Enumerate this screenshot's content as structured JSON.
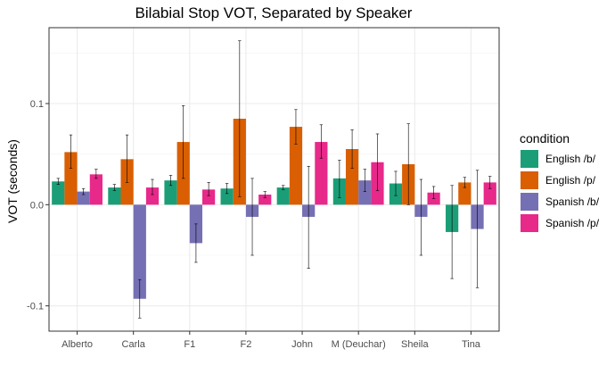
{
  "chart_data": {
    "type": "bar",
    "title": "Bilabial Stop VOT, Separated by Speaker",
    "xlabel": "",
    "ylabel": "VOT (seconds)",
    "ylim": [
      -0.125,
      0.175
    ],
    "yticks": [
      -0.1,
      0.0,
      0.1
    ],
    "ytick_labels": [
      "-0.1",
      "0.0",
      "0.1"
    ],
    "grid": true,
    "legend": {
      "title": "condition",
      "position": "right"
    },
    "categories": [
      "Alberto",
      "Carla",
      "F1",
      "F2",
      "John",
      "M (Deuchar)",
      "Sheila",
      "Tina"
    ],
    "series": [
      {
        "name": "English /b/",
        "color": "#1b9e77",
        "values": [
          0.023,
          0.017,
          0.024,
          0.016,
          0.017,
          0.026,
          0.021,
          -0.027
        ],
        "err_low": [
          0.02,
          0.014,
          0.019,
          0.011,
          0.015,
          0.007,
          0.009,
          -0.073
        ],
        "err_high": [
          0.026,
          0.02,
          0.029,
          0.021,
          0.019,
          0.044,
          0.033,
          0.019
        ]
      },
      {
        "name": "English /p/",
        "color": "#d95f02",
        "values": [
          0.052,
          0.045,
          0.062,
          0.085,
          0.077,
          0.055,
          0.04,
          0.022
        ],
        "err_low": [
          0.036,
          0.022,
          0.026,
          0.008,
          0.06,
          0.036,
          0.0,
          0.017
        ],
        "err_high": [
          0.069,
          0.069,
          0.098,
          0.162,
          0.094,
          0.074,
          0.08,
          0.027
        ]
      },
      {
        "name": "Spanish /b/",
        "color": "#7570b3",
        "values": [
          0.013,
          -0.093,
          -0.038,
          -0.012,
          -0.012,
          0.024,
          -0.012,
          -0.024
        ],
        "err_low": [
          0.01,
          -0.112,
          -0.057,
          -0.05,
          -0.063,
          0.013,
          -0.05,
          -0.082
        ],
        "err_high": [
          0.016,
          -0.074,
          -0.019,
          0.026,
          0.038,
          0.035,
          0.025,
          0.034
        ]
      },
      {
        "name": "Spanish /p/",
        "color": "#e7298a",
        "values": [
          0.03,
          0.017,
          0.015,
          0.01,
          0.062,
          0.042,
          0.012,
          0.022
        ],
        "err_low": [
          0.026,
          0.01,
          0.009,
          0.007,
          0.046,
          0.014,
          0.006,
          0.016
        ],
        "err_high": [
          0.035,
          0.025,
          0.022,
          0.013,
          0.079,
          0.07,
          0.018,
          0.028
        ]
      }
    ]
  }
}
